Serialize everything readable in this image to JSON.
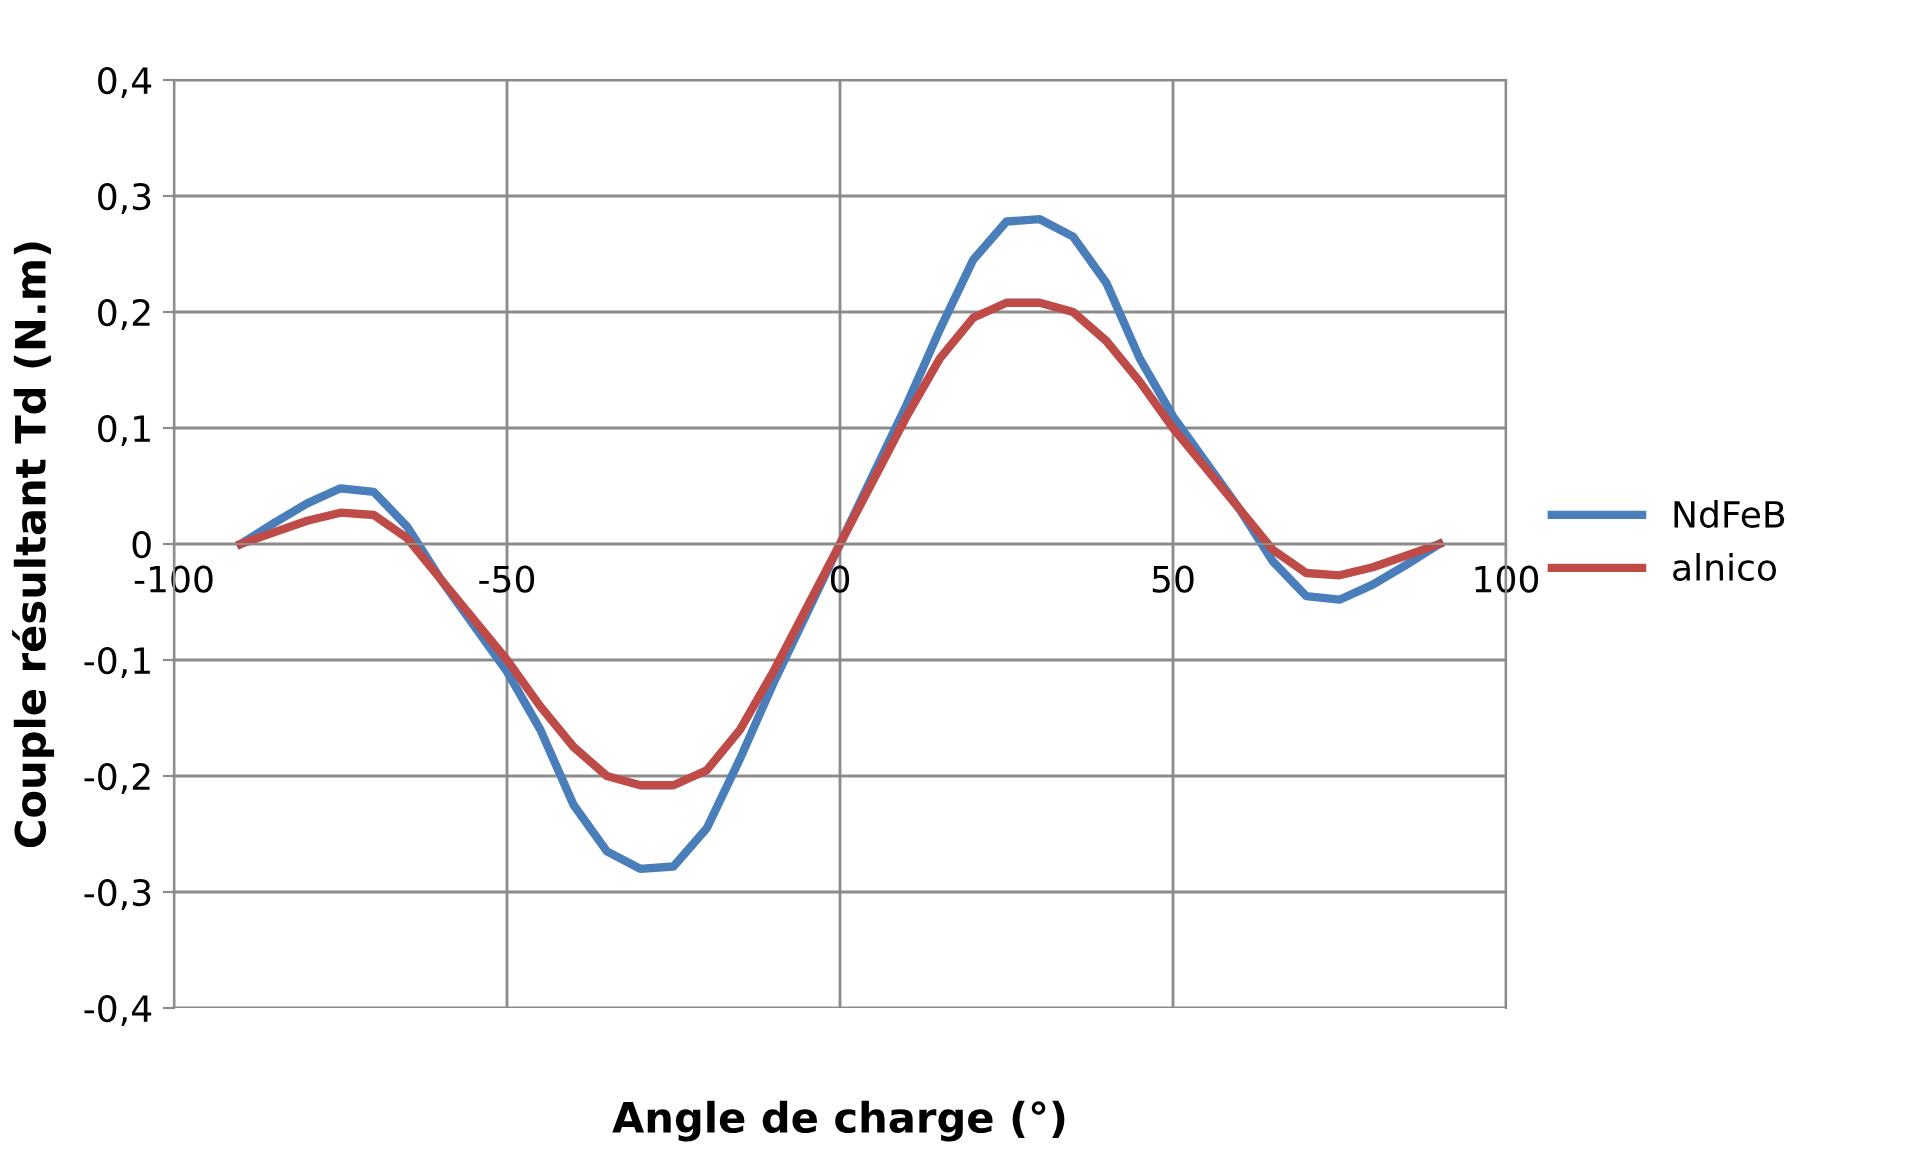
{
  "chart_data": {
    "type": "line",
    "xlabel": "Angle de charge (°)",
    "ylabel": "Couple résultant Td (N.m)",
    "x": [
      -90,
      -85,
      -80,
      -75,
      -70,
      -65,
      -60,
      -55,
      -50,
      -45,
      -40,
      -35,
      -30,
      -25,
      -20,
      -15,
      -10,
      -5,
      0,
      5,
      10,
      15,
      20,
      25,
      30,
      35,
      40,
      45,
      50,
      55,
      60,
      65,
      70,
      75,
      80,
      85,
      90
    ],
    "series": [
      {
        "name": "NdFeB",
        "color": "#4a7ebb",
        "values": [
          0,
          0.018,
          0.035,
          0.048,
          0.045,
          0.015,
          -0.03,
          -0.07,
          -0.11,
          -0.16,
          -0.225,
          -0.265,
          -0.28,
          -0.278,
          -0.245,
          -0.185,
          -0.12,
          -0.06,
          0,
          0.06,
          0.12,
          0.185,
          0.245,
          0.278,
          0.28,
          0.265,
          0.225,
          0.16,
          0.11,
          0.07,
          0.03,
          -0.015,
          -0.045,
          -0.048,
          -0.035,
          -0.018,
          0
        ]
      },
      {
        "name": "alnico",
        "color": "#be4b48",
        "values": [
          0,
          0.01,
          0.02,
          0.027,
          0.025,
          0.005,
          -0.03,
          -0.065,
          -0.1,
          -0.14,
          -0.175,
          -0.2,
          -0.208,
          -0.208,
          -0.195,
          -0.16,
          -0.11,
          -0.055,
          0,
          0.055,
          0.11,
          0.16,
          0.195,
          0.208,
          0.208,
          0.2,
          0.175,
          0.14,
          0.1,
          0.065,
          0.03,
          -0.005,
          -0.025,
          -0.027,
          -0.02,
          -0.01,
          0
        ]
      }
    ],
    "xlim": [
      -100,
      100
    ],
    "xticks": [
      {
        "value": -100,
        "label": "-100"
      },
      {
        "value": -50,
        "label": "-50"
      },
      {
        "value": 0,
        "label": "0"
      },
      {
        "value": 50,
        "label": "50"
      },
      {
        "value": 100,
        "label": "100"
      }
    ],
    "ylim": [
      -0.4,
      0.4
    ],
    "yticks": [
      {
        "value": -0.4,
        "label": "-0,4"
      },
      {
        "value": -0.3,
        "label": "-0,3"
      },
      {
        "value": -0.2,
        "label": "-0,2"
      },
      {
        "value": -0.1,
        "label": "-0,1"
      },
      {
        "value": 0,
        "label": "0"
      },
      {
        "value": 0.1,
        "label": "0,1"
      },
      {
        "value": 0.2,
        "label": "0,2"
      },
      {
        "value": 0.3,
        "label": "0,3"
      },
      {
        "value": 0.4,
        "label": "0,4"
      }
    ],
    "grid": true,
    "legend": "right",
    "marker": "none",
    "line_style": "solid"
  }
}
